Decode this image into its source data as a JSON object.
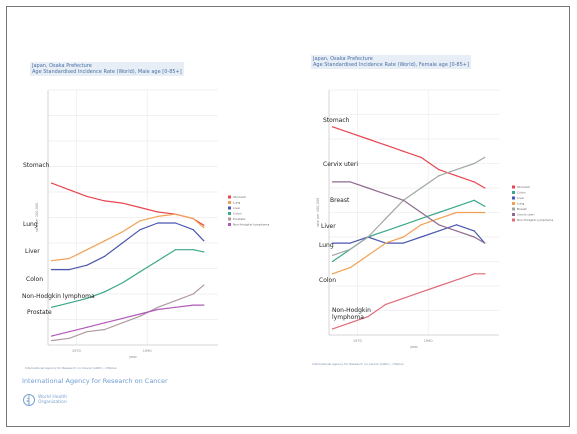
{
  "chart_data": [
    {
      "type": "line",
      "title": "Japan, Osaka Prefecture",
      "subtitle": "Age Standardised Incidence Rate (World), Male age [0-85+]",
      "xlabel": "year",
      "ylabel": "rate per 100,000",
      "xlim": [
        1962,
        2010
      ],
      "ylim": [
        0,
        115
      ],
      "x_ticks": [
        1970,
        1990
      ],
      "log_scale": false,
      "grid": true,
      "legend_position": "right",
      "series": [
        {
          "name": "Stomach",
          "color": "#e8454f",
          "x": [
            1963,
            1968,
            1973,
            1978,
            1983,
            1988,
            1993,
            1998,
            2003,
            2006
          ],
          "y": [
            73,
            70,
            67,
            65,
            64,
            62,
            60,
            59,
            57,
            54
          ]
        },
        {
          "name": "Lung",
          "color": "#f2a054",
          "x": [
            1963,
            1968,
            1973,
            1978,
            1983,
            1988,
            1993,
            1998,
            2003,
            2006
          ],
          "y": [
            38,
            39,
            43,
            47,
            51,
            56,
            58,
            59,
            57,
            53
          ]
        },
        {
          "name": "Liver",
          "color": "#4a57b0",
          "x": [
            1963,
            1968,
            1973,
            1978,
            1983,
            1988,
            1993,
            1998,
            2003,
            2006
          ],
          "y": [
            34,
            34,
            36,
            40,
            46,
            52,
            55,
            55,
            52,
            47
          ]
        },
        {
          "name": "Colon",
          "color": "#3aa88a",
          "x": [
            1963,
            1968,
            1973,
            1978,
            1983,
            1988,
            1993,
            1998,
            2003,
            2006
          ],
          "y": [
            17,
            19,
            21,
            24,
            28,
            33,
            38,
            43,
            43,
            42
          ]
        },
        {
          "name": "Prostate",
          "color": "#b09aa0",
          "x": [
            1963,
            1968,
            1973,
            1978,
            1983,
            1988,
            1993,
            1998,
            2003,
            2006
          ],
          "y": [
            2,
            3,
            6,
            7,
            10,
            13,
            17,
            20,
            23,
            27
          ]
        },
        {
          "name": "Non-Hodgkin lymphoma",
          "color": "#b05ab8",
          "x": [
            1963,
            1968,
            1973,
            1978,
            1983,
            1988,
            1993,
            1998,
            2003,
            2006
          ],
          "y": [
            4,
            6,
            8,
            10,
            12,
            14,
            16,
            17,
            18,
            18
          ]
        }
      ],
      "annotations": [
        "Stomach",
        "Lung",
        "Liver",
        "Colon",
        "Non-Hodgkin lymphoma",
        "Prostate"
      ],
      "source": "International Agency for Research on Cancer (IARC) - Cl5plus",
      "colors": {
        "title": "#4a6fa5",
        "title_bg": "#e8eef6",
        "grid": "#e4e4e4"
      }
    },
    {
      "type": "line",
      "title": "Japan, Osaka Prefecture",
      "subtitle": "Age Standardised Incidence Rate (World), Female age [0-85+]",
      "xlabel": "year",
      "ylabel": "rate per 100,000",
      "xlim": [
        1962,
        2010
      ],
      "ylim": [
        0,
        40
      ],
      "x_ticks": [
        1970,
        1990
      ],
      "log_scale": false,
      "grid": true,
      "legend_position": "right",
      "series": [
        {
          "name": "Stomach",
          "color": "#e8454f",
          "x": [
            1963,
            1968,
            1973,
            1978,
            1983,
            1988,
            1993,
            1998,
            2003,
            2006
          ],
          "y": [
            34,
            33,
            32,
            31,
            30,
            29,
            27,
            26,
            25,
            24
          ]
        },
        {
          "name": "Colon",
          "color": "#3aa88a",
          "x": [
            1963,
            1968,
            1973,
            1978,
            1983,
            1988,
            1993,
            1998,
            2003,
            2006
          ],
          "y": [
            12,
            14,
            16,
            17,
            18,
            19,
            20,
            21,
            22,
            21
          ]
        },
        {
          "name": "Liver",
          "color": "#4a57b0",
          "x": [
            1963,
            1968,
            1973,
            1978,
            1983,
            1988,
            1993,
            1998,
            2003,
            2006
          ],
          "y": [
            15,
            15,
            16,
            15,
            15,
            16,
            17,
            18,
            17,
            15
          ]
        },
        {
          "name": "Lung",
          "color": "#f2a054",
          "x": [
            1963,
            1968,
            1973,
            1978,
            1983,
            1988,
            1993,
            1998,
            2003,
            2006
          ],
          "y": [
            10,
            11,
            13,
            15,
            16,
            18,
            19,
            20,
            20,
            20
          ]
        },
        {
          "name": "Breast",
          "color": "#9fa8a0",
          "x": [
            1963,
            1968,
            1973,
            1978,
            1983,
            1988,
            1993,
            1998,
            2003,
            2006
          ],
          "y": [
            13,
            14,
            16,
            19,
            22,
            24,
            26,
            27,
            28,
            29
          ]
        },
        {
          "name": "Cervix uteri",
          "color": "#8e6b8e",
          "x": [
            1963,
            1968,
            1973,
            1978,
            1983,
            1988,
            1993,
            1998,
            2003,
            2006
          ],
          "y": [
            25,
            25,
            24,
            23,
            22,
            20,
            18,
            17,
            16,
            15
          ]
        },
        {
          "name": "Non-Hodgkin lymphoma",
          "color": "#e06a78",
          "x": [
            1963,
            1968,
            1973,
            1978,
            1983,
            1988,
            1993,
            1998,
            2003,
            2006
          ],
          "y": [
            1,
            2,
            3,
            5,
            6,
            7,
            8,
            9,
            10,
            10
          ]
        }
      ],
      "annotations": [
        "Stomach",
        "Cervix uteri",
        "Breast",
        "Liver",
        "Lung",
        "Colon",
        "Non-Hodgkin lymphoma"
      ],
      "source": "International Agency for Research on Cancer (IARC) - Cl5plus",
      "colors": {
        "title": "#4a6fa5",
        "title_bg": "#e8eef6",
        "grid": "#e4e4e4"
      }
    }
  ],
  "footer": {
    "org": "International Agency for Research on Cancer",
    "who_line1": "World Health",
    "who_line2": "Organization"
  }
}
